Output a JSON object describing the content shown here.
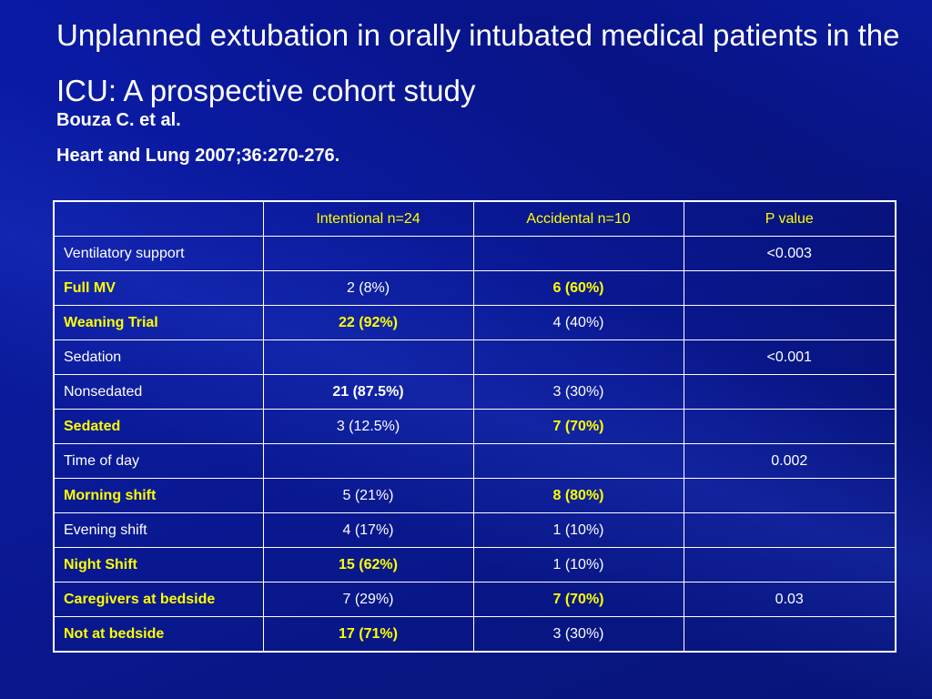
{
  "slide": {
    "title": "Unplanned extubation in orally intubated medical patients in the ICU: A prospective cohort study",
    "author": "Bouza C. et al.",
    "journal": "Heart and Lung 2007;36:270-276."
  },
  "table": {
    "headers": [
      "",
      "Intentional n=24",
      "Accidental n=10",
      "P value"
    ],
    "rows": [
      {
        "label": "Ventilatory support",
        "intentional": "",
        "accidental": "",
        "p": "<0.003"
      },
      {
        "label": "Full MV",
        "intentional": "2 (8%)",
        "accidental": "6 (60%)",
        "p": ""
      },
      {
        "label": "Weaning Trial",
        "intentional": "22 (92%)",
        "accidental": "4 (40%)",
        "p": ""
      },
      {
        "label": "Sedation",
        "intentional": "",
        "accidental": "",
        "p": "<0.001"
      },
      {
        "label": "Nonsedated",
        "intentional": "21 (87.5%)",
        "accidental": "3 (30%)",
        "p": ""
      },
      {
        "label": "Sedated",
        "intentional": "3 (12.5%)",
        "accidental": "7 (70%)",
        "p": ""
      },
      {
        "label": "Time of day",
        "intentional": "",
        "accidental": "",
        "p": "0.002"
      },
      {
        "label": "Morning shift",
        "intentional": "5 (21%)",
        "accidental": "8 (80%)",
        "p": ""
      },
      {
        "label": "Evening shift",
        "intentional": "4 (17%)",
        "accidental": "1 (10%)",
        "p": ""
      },
      {
        "label": "Night Shift",
        "intentional": "15 (62%)",
        "accidental": "1 (10%)",
        "p": ""
      },
      {
        "label": "Caregivers at bedside",
        "intentional": "7 (29%)",
        "accidental": "7 (70%)",
        "p": "0.03"
      },
      {
        "label": "Not at bedside",
        "intentional": "17 (71%)",
        "accidental": "3 (30%)",
        "p": ""
      }
    ]
  },
  "colors": {
    "background": "#0a1aa6",
    "highlight": "#ffff00",
    "text": "#ffffff"
  }
}
